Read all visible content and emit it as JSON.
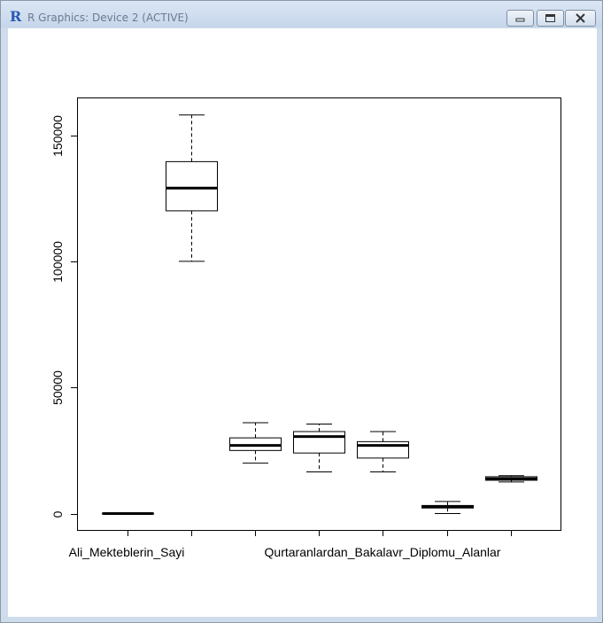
{
  "window": {
    "title": "R Graphics: Device 2 (ACTIVE)",
    "app_icon": "R",
    "controls": [
      "minimize-icon",
      "maximize-icon",
      "close-icon"
    ]
  },
  "chart_data": {
    "type": "boxplot",
    "ylim": [
      -6000,
      165000
    ],
    "yticks": [
      0,
      50000,
      100000,
      150000
    ],
    "yticklabels": [
      "0",
      "50000",
      "100000",
      "150000"
    ],
    "xlabels_shown": [
      "Ali_Mekteblerin_Sayi",
      "Qurtaranlardan_Bakalavr_Diplomu_Alanlar"
    ],
    "boxes": [
      {
        "min": 0,
        "q1": 0,
        "median": 0,
        "q3": 0,
        "max": 0
      },
      {
        "min": 100000,
        "q1": 120000,
        "median": 129000,
        "q3": 139500,
        "max": 158000
      },
      {
        "min": 20000,
        "q1": 25000,
        "median": 27000,
        "q3": 30000,
        "max": 36000
      },
      {
        "min": 16500,
        "q1": 24000,
        "median": 30500,
        "q3": 32500,
        "max": 35500
      },
      {
        "min": 16500,
        "q1": 22000,
        "median": 27000,
        "q3": 28500,
        "max": 32500
      },
      {
        "min": 0,
        "q1": 2200,
        "median": 2700,
        "q3": 3200,
        "max": 4800
      },
      {
        "min": 12500,
        "q1": 13200,
        "median": 13800,
        "q3": 14600,
        "max": 15000
      }
    ],
    "grid": false,
    "legend": "none"
  }
}
